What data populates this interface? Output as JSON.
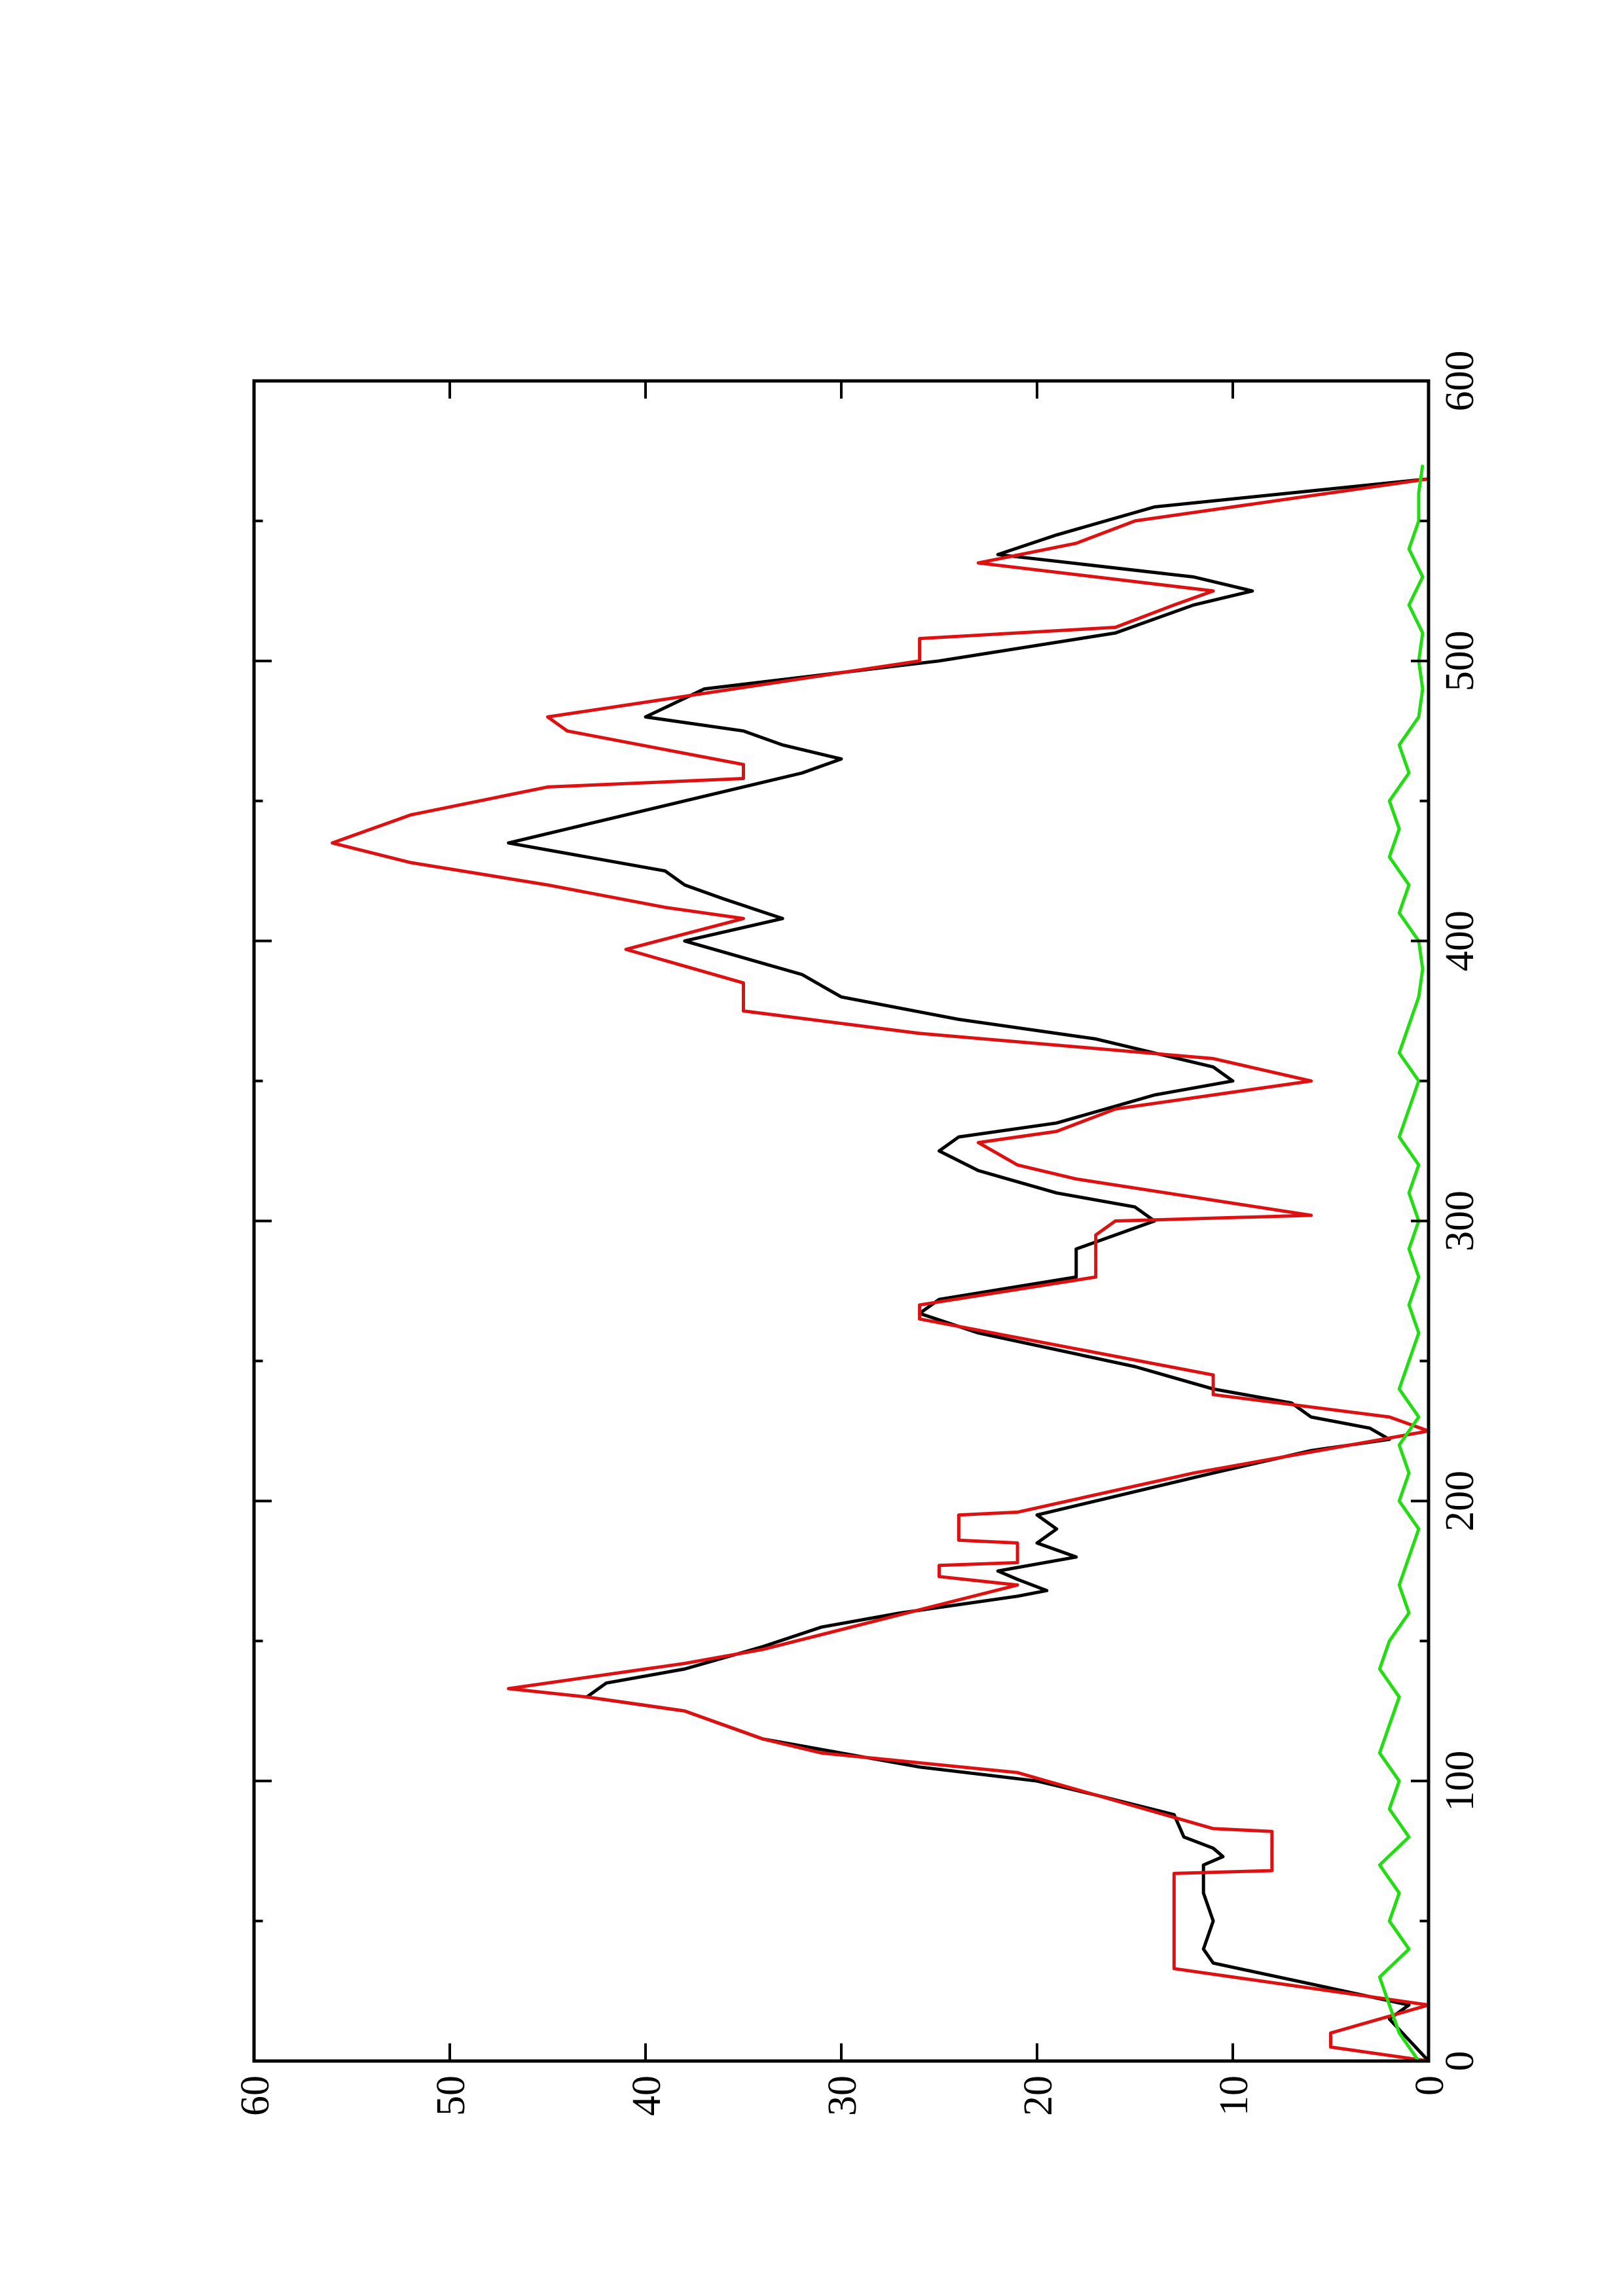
{
  "chart_data": {
    "type": "line",
    "xlim": [
      0,
      600
    ],
    "xticks": [
      0,
      100,
      200,
      300,
      400,
      500,
      600
    ],
    "x_minor_ticks": [
      50,
      150,
      250,
      350,
      450,
      550
    ],
    "ylim": [
      0,
      60
    ],
    "yticks": [
      0,
      10,
      20,
      30,
      40,
      50,
      60
    ],
    "series": [
      {
        "color": "#000000",
        "x": [
          0,
          15,
          20,
          35,
          40,
          50,
          60,
          70,
          73,
          76,
          80,
          88,
          95,
          100,
          105,
          110,
          115,
          120,
          125,
          130,
          135,
          140,
          148,
          155,
          160,
          166,
          168,
          172,
          175,
          180,
          185,
          190,
          195,
          200,
          210,
          218,
          222,
          226,
          230,
          235,
          240,
          248,
          260,
          267,
          272,
          280,
          290,
          300,
          305,
          310,
          318,
          325,
          330,
          335,
          345,
          350,
          355,
          365,
          372,
          380,
          388,
          400,
          408,
          415,
          420,
          425,
          435,
          440,
          450,
          460,
          465,
          470,
          475,
          480,
          490,
          500,
          510,
          520,
          525,
          530,
          538,
          545,
          555,
          565
        ],
        "values": [
          0,
          2,
          1,
          11,
          11.5,
          11,
          11.5,
          11.5,
          10.5,
          11,
          12.5,
          13,
          17,
          20,
          26,
          30,
          34,
          36,
          38,
          43,
          42,
          38,
          34,
          31,
          27,
          21,
          19.5,
          21,
          22,
          18,
          20,
          19,
          20,
          17,
          11,
          6,
          2,
          3,
          6,
          7,
          11,
          15,
          23,
          26,
          25,
          18,
          18,
          14,
          15,
          19,
          23,
          25,
          24,
          19,
          14,
          10,
          11,
          17,
          24,
          30,
          32,
          38,
          33,
          36,
          38,
          39,
          47,
          44,
          38,
          32,
          30,
          33,
          35,
          40,
          37,
          25,
          16,
          12,
          9,
          12,
          22,
          19,
          14,
          0
        ]
      },
      {
        "color": "#dd1111",
        "x": [
          0,
          5,
          10,
          20,
          33,
          67,
          68,
          82,
          83,
          103,
          110,
          115,
          120,
          125,
          130,
          133,
          140,
          142,
          147,
          170,
          173,
          177,
          178,
          185,
          186,
          195,
          196,
          210,
          225,
          230,
          238,
          245,
          265,
          270,
          280,
          295,
          300,
          302,
          315,
          320,
          328,
          332,
          340,
          345,
          350,
          358,
          367,
          375,
          385,
          397,
          408,
          412,
          420,
          428,
          435,
          445,
          455,
          458,
          463,
          475,
          480,
          500,
          508,
          512,
          520,
          525,
          535,
          542,
          550,
          565
        ],
        "values": [
          0,
          5,
          5,
          0,
          13,
          13,
          8,
          8,
          11,
          21,
          31,
          34,
          36,
          38,
          43,
          47,
          40,
          38,
          34,
          21,
          25,
          25,
          21,
          21,
          24,
          24,
          21,
          12,
          0,
          2,
          11,
          11,
          26,
          26,
          17,
          17,
          16,
          6,
          18,
          21,
          23,
          19,
          16,
          11,
          6,
          11,
          26,
          35,
          35,
          41,
          35,
          39,
          45,
          52,
          56,
          52,
          45,
          35,
          35,
          44,
          45,
          26,
          26,
          16,
          13,
          11,
          23,
          18,
          15,
          0
        ]
      },
      {
        "color": "#22dd11",
        "x": [
          0,
          10,
          20,
          30,
          40,
          50,
          60,
          70,
          80,
          90,
          100,
          110,
          120,
          130,
          140,
          150,
          160,
          170,
          180,
          190,
          200,
          210,
          220,
          230,
          240,
          250,
          260,
          270,
          280,
          290,
          300,
          310,
          320,
          330,
          340,
          350,
          360,
          370,
          380,
          390,
          400,
          410,
          420,
          430,
          440,
          450,
          460,
          470,
          480,
          490,
          500,
          510,
          520,
          530,
          540,
          550,
          560,
          570
        ],
        "values": [
          0.5,
          1.5,
          2,
          2.5,
          1,
          2,
          1.5,
          2.5,
          1,
          2,
          1.5,
          2.5,
          2,
          1.5,
          2.5,
          2,
          1,
          1.5,
          1,
          0.5,
          1.5,
          1,
          1.5,
          0.5,
          1.5,
          1,
          0.5,
          1,
          0.5,
          1,
          0.5,
          1,
          0.5,
          1.5,
          1,
          0.5,
          1.5,
          1,
          0.5,
          0.3,
          0.5,
          1.5,
          1,
          2,
          1.5,
          2,
          1,
          1.5,
          0.5,
          0.3,
          0.5,
          0.3,
          1,
          0.3,
          1,
          0.5,
          0.5,
          0.3
        ]
      }
    ]
  }
}
